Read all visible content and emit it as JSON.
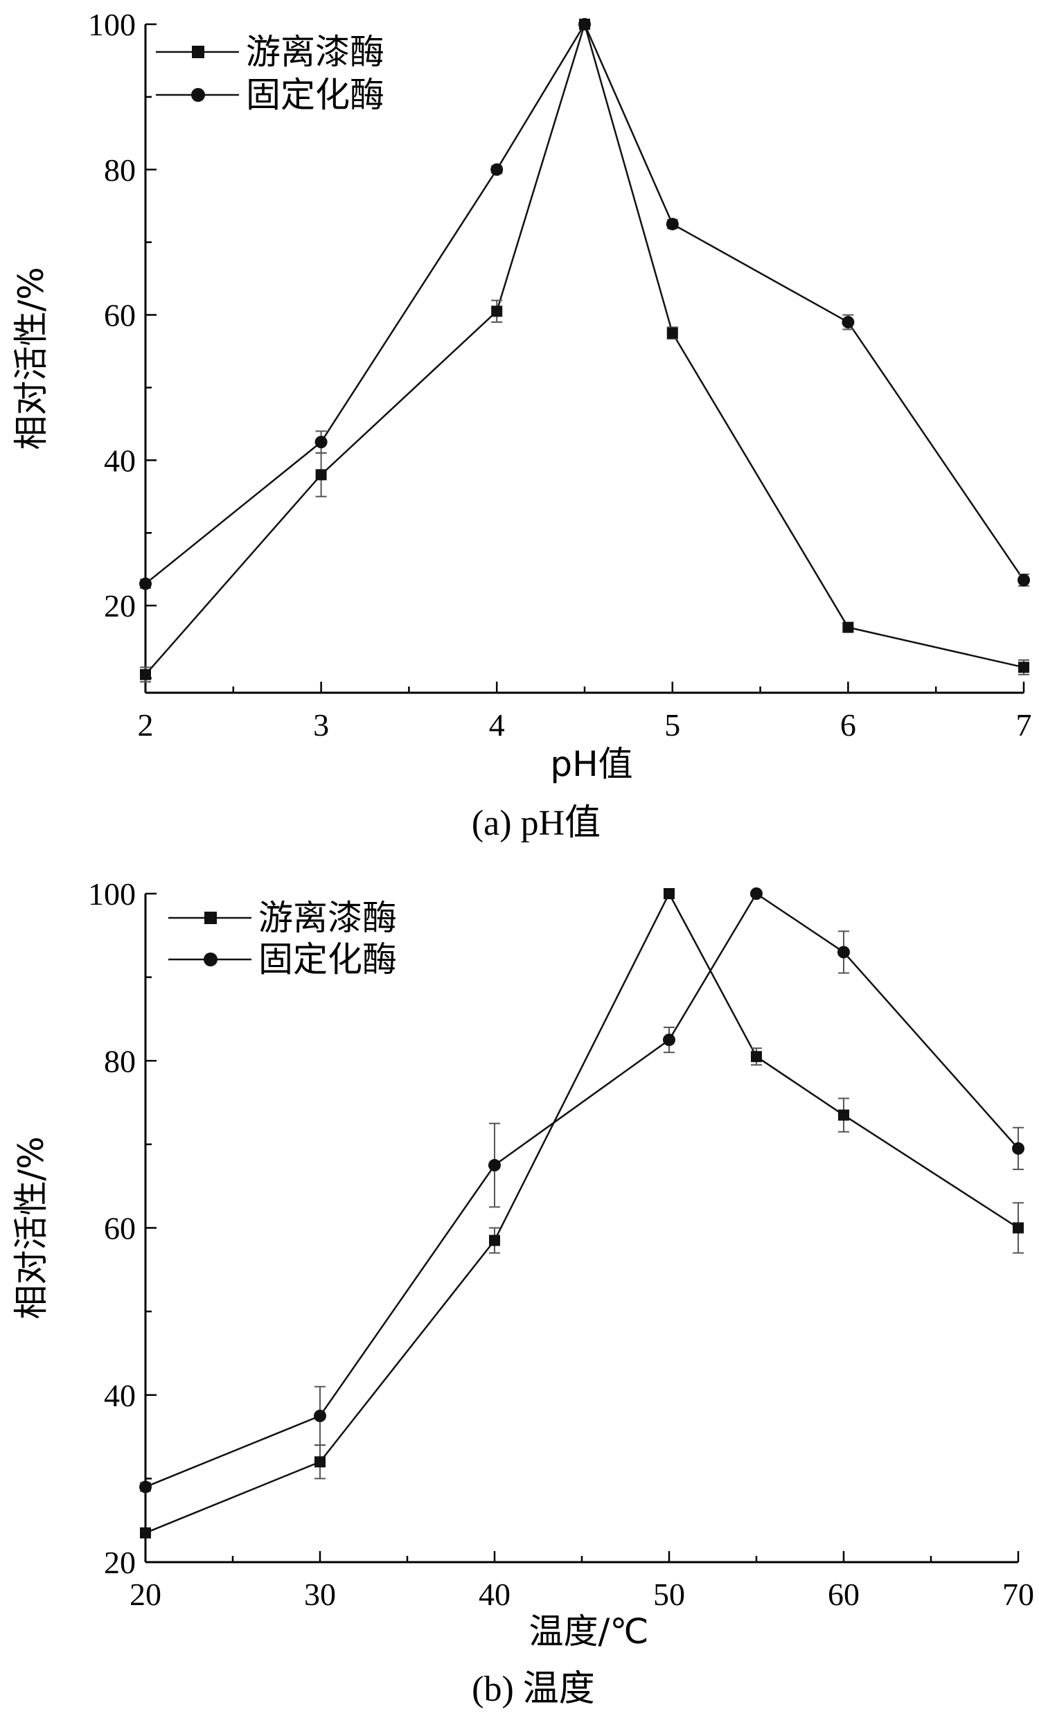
{
  "chart_data": [
    {
      "type": "line",
      "caption": "(a) pH值",
      "xlabel": "pH值",
      "ylabel": "相对活性/%",
      "xlim": [
        2,
        7
      ],
      "ylim": [
        8,
        100
      ],
      "xticks": [
        "2",
        "3",
        "4",
        "5",
        "6",
        "7"
      ],
      "yticks": [
        "20",
        "40",
        "60",
        "80",
        "100"
      ],
      "legend_position": "top-left",
      "series": [
        {
          "name": "游离漆酶",
          "marker": "square",
          "x": [
            2,
            3,
            4,
            4.5,
            5,
            6,
            7
          ],
          "y": [
            10.5,
            38,
            60.5,
            100,
            57.5,
            17,
            11.5
          ],
          "err": [
            1,
            3,
            1.5,
            0,
            0.8,
            0.6,
            1
          ]
        },
        {
          "name": "固定化酶",
          "marker": "circle",
          "x": [
            2,
            3,
            4,
            4.5,
            5,
            6,
            7
          ],
          "y": [
            23,
            42.5,
            80,
            100,
            72.5,
            59,
            23.5
          ],
          "err": [
            0.6,
            1.5,
            0.5,
            0,
            0.6,
            1,
            0.8
          ]
        }
      ]
    },
    {
      "type": "line",
      "caption": "(b) 温度",
      "xlabel": "温度/℃",
      "ylabel": "相对活性/%",
      "xlim": [
        20,
        70
      ],
      "ylim": [
        20,
        100
      ],
      "xticks": [
        "20",
        "30",
        "40",
        "50",
        "60",
        "70"
      ],
      "yticks": [
        "20",
        "40",
        "60",
        "80",
        "100"
      ],
      "legend_position": "top-left",
      "series": [
        {
          "name": "游离漆酶",
          "marker": "square",
          "x": [
            20,
            30,
            40,
            50,
            55,
            60,
            70
          ],
          "y": [
            23.5,
            32,
            58.5,
            100,
            80.5,
            73.5,
            60
          ],
          "err": [
            0.5,
            2,
            1.5,
            0,
            1,
            2,
            3
          ]
        },
        {
          "name": "固定化酶",
          "marker": "circle",
          "x": [
            20,
            30,
            40,
            50,
            55,
            60,
            70
          ],
          "y": [
            29,
            37.5,
            67.5,
            82.5,
            100,
            93,
            69.5
          ],
          "err": [
            0.5,
            3.5,
            5,
            1.5,
            0,
            2.5,
            2.5
          ]
        }
      ]
    }
  ]
}
